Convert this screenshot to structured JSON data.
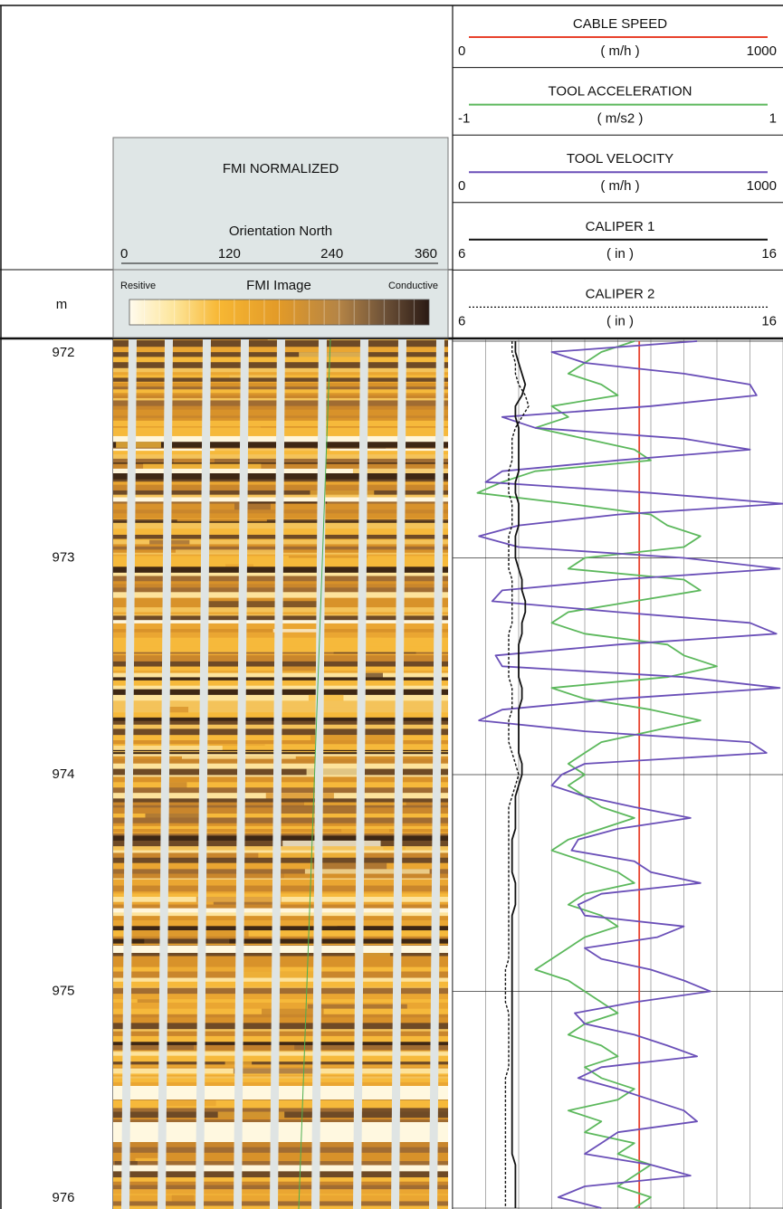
{
  "header": {
    "depth_unit": "m"
  },
  "fmi": {
    "title": "FMI NORMALIZED",
    "orientation_label": "Orientation North",
    "orientation_lim": [
      0,
      360
    ],
    "orientation_ticks": [
      0,
      120,
      240,
      360
    ],
    "left_label": "Resitive",
    "image_label": "FMI Image",
    "right_label": "Conductive"
  },
  "chart_data": {
    "type": "log",
    "x": [
      972.0,
      972.05,
      972.1,
      972.15,
      972.2,
      972.25,
      972.3,
      972.35,
      972.4,
      972.45,
      972.5,
      972.55,
      972.6,
      972.65,
      972.7,
      972.75,
      972.8,
      972.85,
      972.9,
      972.95,
      973.0,
      973.05,
      973.1,
      973.15,
      973.2,
      973.25,
      973.3,
      973.35,
      973.4,
      973.45,
      973.5,
      973.55,
      973.6,
      973.65,
      973.7,
      973.75,
      973.8,
      973.85,
      973.9,
      973.95,
      974.0,
      974.05,
      974.1,
      974.15,
      974.2,
      974.25,
      974.3,
      974.35,
      974.4,
      974.45,
      974.5,
      974.55,
      974.6,
      974.65,
      974.7,
      974.75,
      974.8,
      974.85,
      974.9,
      974.95,
      975.0,
      975.05,
      975.1,
      975.15,
      975.2,
      975.25,
      975.3,
      975.35,
      975.4,
      975.45,
      975.5,
      975.55,
      975.6,
      975.65,
      975.7,
      975.75,
      975.8,
      975.85,
      975.9,
      975.95,
      976.0
    ],
    "ylim": [
      972,
      976
    ],
    "yticks": [
      972,
      973,
      974,
      975,
      976
    ],
    "xlim": [
      6,
      16
    ],
    "xticks": [
      6,
      7,
      8,
      9,
      10,
      11,
      12,
      13,
      14,
      15,
      16
    ],
    "grid": true,
    "series": [
      {
        "name": "CABLE SPEED",
        "unit": "( m/h )",
        "color": "#e8412c",
        "style": "solid",
        "xlim": [
          0,
          1000
        ],
        "values": [
          565,
          565,
          565,
          565,
          565,
          565,
          565,
          565,
          565,
          565,
          565,
          565,
          565,
          565,
          565,
          565,
          565,
          565,
          565,
          565,
          565,
          565,
          565,
          565,
          565,
          565,
          565,
          565,
          565,
          565,
          565,
          565,
          565,
          565,
          565,
          565,
          565,
          565,
          565,
          565,
          565,
          565,
          565,
          565,
          565,
          565,
          565,
          565,
          565,
          565,
          565,
          565,
          565,
          565,
          565,
          565,
          565,
          565,
          565,
          565,
          565,
          565,
          565,
          565,
          565,
          565,
          565,
          565,
          565,
          565,
          565,
          565,
          565,
          565,
          565,
          565,
          565,
          565,
          565,
          565,
          565
        ]
      },
      {
        "name": "TOOL ACCELERATION",
        "unit": "( m/s2 )",
        "color": "#5cb85c",
        "style": "solid",
        "xlim": [
          -1,
          1
        ],
        "values": [
          0.1,
          -0.1,
          -0.2,
          -0.3,
          -0.1,
          0.0,
          -0.4,
          -0.3,
          -0.5,
          -0.2,
          0.1,
          0.2,
          -0.5,
          -0.7,
          -0.85,
          -0.3,
          0.2,
          0.3,
          0.5,
          0.4,
          -0.2,
          -0.3,
          0.4,
          0.5,
          0.1,
          -0.3,
          -0.4,
          -0.2,
          0.3,
          0.4,
          0.6,
          0.3,
          -0.4,
          -0.2,
          0.2,
          0.5,
          0.2,
          -0.1,
          -0.2,
          -0.3,
          -0.2,
          -0.3,
          -0.2,
          -0.1,
          0.1,
          -0.1,
          -0.3,
          -0.4,
          -0.2,
          0.0,
          0.1,
          -0.2,
          -0.3,
          -0.1,
          0.0,
          -0.2,
          -0.3,
          -0.4,
          -0.5,
          -0.3,
          -0.2,
          -0.1,
          0.0,
          -0.2,
          -0.3,
          -0.1,
          0.0,
          -0.2,
          -0.1,
          0.1,
          0.0,
          -0.3,
          -0.1,
          -0.2,
          0.1,
          0.0,
          0.2,
          0.1,
          0.0,
          0.2,
          0.1
        ]
      },
      {
        "name": "TOOL VELOCITY",
        "unit": "( m/h )",
        "color": "#6a4fb8",
        "style": "solid",
        "xlim": [
          0,
          1000
        ],
        "values": [
          740,
          300,
          400,
          700,
          900,
          920,
          600,
          150,
          250,
          700,
          900,
          500,
          150,
          100,
          600,
          1000,
          500,
          200,
          80,
          200,
          700,
          990,
          500,
          150,
          120,
          500,
          900,
          980,
          500,
          130,
          150,
          700,
          990,
          500,
          150,
          80,
          400,
          900,
          950,
          400,
          330,
          300,
          400,
          550,
          720,
          500,
          380,
          360,
          550,
          600,
          750,
          450,
          380,
          400,
          700,
          620,
          400,
          450,
          600,
          700,
          780,
          550,
          370,
          400,
          550,
          650,
          740,
          450,
          380,
          500,
          600,
          700,
          740,
          500,
          450,
          400,
          600,
          720,
          400,
          320,
          450
        ]
      },
      {
        "name": "CALIPER  1",
        "unit": "( in )",
        "color": "#111111",
        "style": "solid",
        "xlim": [
          6,
          16
        ],
        "values": [
          7.9,
          7.9,
          8.0,
          8.1,
          8.2,
          8.1,
          7.9,
          7.9,
          8.0,
          8.0,
          8.0,
          8.0,
          8.0,
          7.9,
          7.9,
          8.0,
          8.0,
          8.0,
          7.9,
          7.9,
          7.9,
          8.0,
          8.1,
          8.1,
          8.2,
          8.2,
          8.1,
          8.1,
          8.0,
          8.0,
          8.0,
          8.0,
          8.1,
          8.1,
          8.0,
          8.0,
          8.0,
          8.0,
          8.0,
          8.1,
          8.1,
          8.0,
          7.9,
          7.9,
          7.9,
          7.9,
          7.8,
          7.8,
          7.8,
          7.8,
          7.9,
          7.9,
          7.9,
          7.8,
          7.8,
          7.8,
          7.8,
          7.8,
          7.8,
          7.8,
          7.8,
          7.8,
          7.8,
          7.8,
          7.8,
          7.8,
          7.8,
          7.8,
          7.8,
          7.8,
          7.8,
          7.8,
          7.8,
          7.8,
          7.8,
          7.8,
          7.9,
          7.9,
          7.9,
          7.9,
          7.9
        ]
      },
      {
        "name": "CALIPER  2",
        "unit": "( in )",
        "color": "#111111",
        "style": "dashed",
        "xlim": [
          6,
          16
        ],
        "values": [
          7.8,
          7.8,
          7.9,
          7.9,
          8.0,
          8.2,
          8.3,
          8.1,
          7.9,
          7.8,
          7.8,
          7.8,
          7.7,
          7.7,
          7.7,
          7.8,
          7.8,
          7.8,
          7.7,
          7.7,
          7.7,
          7.7,
          7.8,
          7.8,
          7.8,
          7.8,
          7.8,
          7.7,
          7.7,
          7.7,
          7.7,
          7.7,
          7.8,
          7.8,
          7.8,
          7.7,
          7.7,
          7.7,
          7.8,
          7.9,
          8.0,
          7.9,
          7.8,
          7.7,
          7.7,
          7.7,
          7.7,
          7.7,
          7.7,
          7.7,
          7.7,
          7.7,
          7.7,
          7.7,
          7.7,
          7.7,
          7.7,
          7.7,
          7.6,
          7.6,
          7.6,
          7.6,
          7.7,
          7.7,
          7.7,
          7.7,
          7.7,
          7.7,
          7.6,
          7.6,
          7.6,
          7.6,
          7.6,
          7.6,
          7.6,
          7.6,
          7.6,
          7.6,
          7.6,
          7.6,
          7.6
        ]
      }
    ]
  }
}
